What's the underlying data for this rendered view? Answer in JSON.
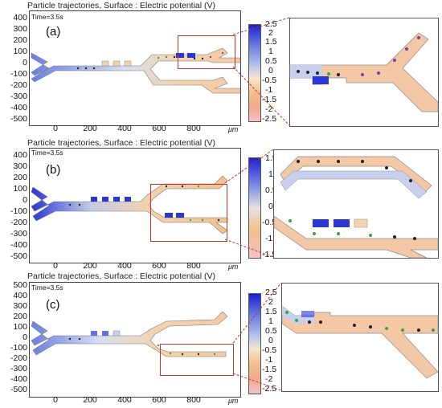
{
  "panels": [
    {
      "id": "a",
      "title": "Particle trajectories, Surface : Electric potential (V)",
      "time": "Time=3.5s",
      "letter": "(a)",
      "yticks": [
        "400",
        "300",
        "200",
        "100",
        "0",
        "-100",
        "-200",
        "-300",
        "-400",
        "-500"
      ],
      "xticks": [
        "0",
        "200",
        "400",
        "600",
        "800"
      ],
      "unit": "μm",
      "cbticks": [
        "2.5",
        "2",
        "1.5",
        "1",
        "0.5",
        "0",
        "-0.5",
        "-1",
        "-1.5",
        "-2",
        "-2.5"
      ]
    },
    {
      "id": "b",
      "title": "Particle trajectories, Surface : Electric potential (V)",
      "time": "Time=3.5s",
      "letter": "(b)",
      "yticks": [
        "400",
        "300",
        "200",
        "100",
        "0",
        "-100",
        "-200",
        "-300",
        "-400",
        "-500"
      ],
      "xticks": [
        "0",
        "200",
        "400",
        "600",
        "800"
      ],
      "unit": "μm",
      "cbticks": [
        "1.5",
        "1",
        "0.5",
        "0",
        "-0.5",
        "-1",
        "-1.5"
      ]
    },
    {
      "id": "c",
      "title": "Particle trajectories, Surface : Electric potential (V)",
      "time": "Time=3.5s",
      "letter": "(c)",
      "yticks": [
        "500",
        "400",
        "300",
        "200",
        "100",
        "0",
        "-100",
        "-200",
        "-300",
        "-400",
        "-500"
      ],
      "xticks": [
        "0",
        "200",
        "400",
        "600",
        "800"
      ],
      "unit": "μm",
      "cbticks": [
        "2.5",
        "2",
        "1.5",
        "1",
        "0.5",
        "0",
        "-0.5",
        "-1",
        "-1.5",
        "-2",
        "-2.5"
      ]
    }
  ],
  "colors": {
    "high_potential": "#1d1fd1",
    "low_potential": "#f4c1c6",
    "channel_mid": "#f3d3ad",
    "zoom_box": "#c0392b",
    "particle_dark": "#222222",
    "particle_green": "#3aa53a",
    "particle_purple": "#7b3fa0"
  }
}
